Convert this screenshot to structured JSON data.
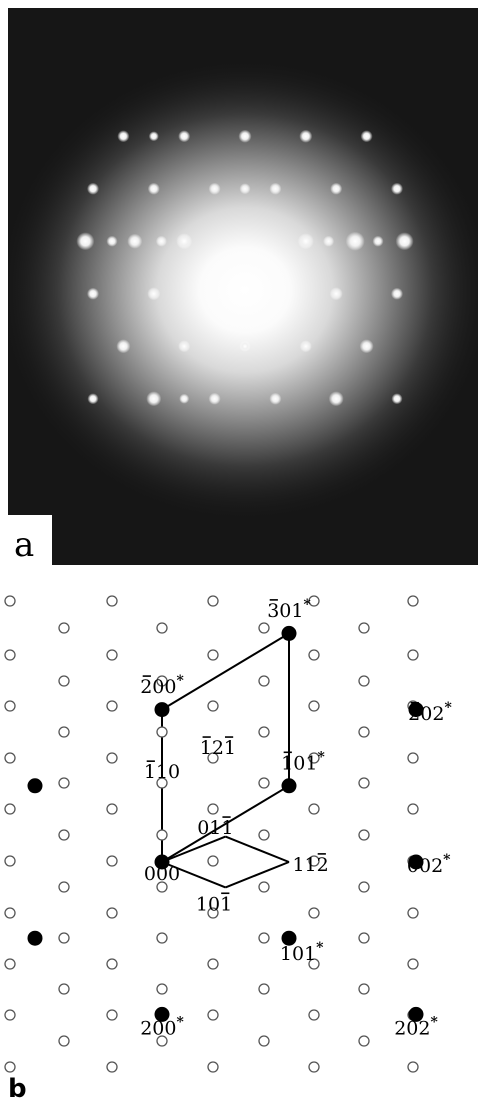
{
  "panel_a": {
    "label": "a",
    "spots": [
      [
        -1.3,
        -4.2,
        1.2
      ],
      [
        -1.3,
        -2.9,
        0.9
      ],
      [
        -1.3,
        -1.6,
        1.0
      ],
      [
        -1.3,
        1.6,
        1.0
      ],
      [
        -1.3,
        2.9,
        1.3
      ],
      [
        -1.3,
        4.2,
        1.2
      ],
      [
        -1.3,
        -3.5,
        0.5
      ],
      [
        -1.3,
        -2.2,
        0.5
      ],
      [
        -1.3,
        2.2,
        0.5
      ],
      [
        -1.3,
        3.5,
        0.5
      ],
      [
        -4.1,
        -3.2,
        0.6
      ],
      [
        -4.1,
        -1.6,
        0.6
      ],
      [
        -4.1,
        0.0,
        0.7
      ],
      [
        -4.1,
        1.6,
        0.7
      ],
      [
        -4.1,
        3.2,
        0.6
      ],
      [
        -2.7,
        -4.0,
        0.6
      ],
      [
        -2.7,
        -2.4,
        0.6
      ],
      [
        -2.7,
        -0.8,
        0.6
      ],
      [
        -2.7,
        0.8,
        0.6
      ],
      [
        -2.7,
        2.4,
        0.6
      ],
      [
        -2.7,
        4.0,
        0.6
      ],
      [
        0.1,
        -4.0,
        0.6
      ],
      [
        0.1,
        -2.4,
        0.7
      ],
      [
        0.1,
        2.4,
        0.7
      ],
      [
        0.1,
        4.0,
        0.6
      ],
      [
        1.5,
        -3.2,
        0.8
      ],
      [
        1.5,
        -1.6,
        0.6
      ],
      [
        1.5,
        1.6,
        0.6
      ],
      [
        1.5,
        3.2,
        0.8
      ],
      [
        2.9,
        -4.0,
        0.5
      ],
      [
        2.9,
        -2.4,
        0.9
      ],
      [
        2.9,
        -0.8,
        0.6
      ],
      [
        2.9,
        0.8,
        0.6
      ],
      [
        2.9,
        2.4,
        0.9
      ],
      [
        2.9,
        4.0,
        0.5
      ],
      [
        -4.1,
        -2.4,
        0.4
      ],
      [
        2.9,
        -1.6,
        0.4
      ],
      [
        1.5,
        0.0,
        0.5
      ],
      [
        -2.7,
        0.0,
        0.5
      ]
    ]
  },
  "panel_b": {
    "label": "b",
    "open_points": [
      [
        0,
        -5
      ],
      [
        0,
        -3
      ],
      [
        0,
        -1
      ],
      [
        0,
        1
      ],
      [
        0,
        3
      ],
      [
        0,
        5
      ],
      [
        0,
        7
      ],
      [
        1,
        -6
      ],
      [
        1,
        -4
      ],
      [
        1,
        -2
      ],
      [
        1,
        0
      ],
      [
        1,
        2
      ],
      [
        1,
        4
      ],
      [
        1,
        6
      ],
      [
        2,
        -7
      ],
      [
        2,
        -5
      ],
      [
        2,
        -3
      ],
      [
        2,
        -1
      ],
      [
        2,
        1
      ],
      [
        2,
        3
      ],
      [
        2,
        5
      ],
      [
        2,
        7
      ],
      [
        3,
        -6
      ],
      [
        3,
        -4
      ],
      [
        3,
        -2
      ],
      [
        3,
        0
      ],
      [
        3,
        2
      ],
      [
        3,
        4
      ],
      [
        3,
        6
      ],
      [
        4,
        -7
      ],
      [
        4,
        -5
      ],
      [
        4,
        -3
      ],
      [
        4,
        -1
      ],
      [
        4,
        1
      ],
      [
        4,
        3
      ],
      [
        4,
        5
      ],
      [
        4,
        7
      ],
      [
        5,
        -6
      ],
      [
        5,
        -4
      ],
      [
        5,
        -2
      ],
      [
        5,
        0
      ],
      [
        5,
        2
      ],
      [
        5,
        4
      ],
      [
        5,
        6
      ],
      [
        6,
        -7
      ],
      [
        6,
        -5
      ],
      [
        6,
        -3
      ],
      [
        6,
        -1
      ],
      [
        6,
        1
      ],
      [
        6,
        3
      ],
      [
        6,
        5
      ],
      [
        6,
        7
      ],
      [
        7,
        -6
      ],
      [
        7,
        -4
      ],
      [
        7,
        -2
      ],
      [
        7,
        0
      ],
      [
        7,
        2
      ],
      [
        7,
        4
      ],
      [
        7,
        6
      ],
      [
        8,
        -7
      ],
      [
        8,
        -5
      ],
      [
        8,
        -3
      ],
      [
        8,
        -1
      ],
      [
        8,
        1
      ],
      [
        8,
        3
      ],
      [
        8,
        5
      ],
      [
        8,
        7
      ],
      [
        9,
        -6
      ],
      [
        9,
        -4
      ],
      [
        9,
        -2
      ],
      [
        9,
        0
      ],
      [
        9,
        2
      ],
      [
        9,
        4
      ],
      [
        9,
        6
      ],
      [
        10,
        -7
      ],
      [
        10,
        -5
      ],
      [
        10,
        -3
      ],
      [
        10,
        -1
      ],
      [
        10,
        1
      ],
      [
        10,
        3
      ],
      [
        10,
        5
      ],
      [
        10,
        7
      ],
      [
        11,
        -6
      ],
      [
        11,
        -4
      ],
      [
        11,
        -2
      ],
      [
        11,
        0
      ],
      [
        11,
        2
      ],
      [
        11,
        4
      ],
      [
        11,
        6
      ],
      [
        12,
        -7
      ],
      [
        12,
        -5
      ],
      [
        12,
        -3
      ],
      [
        12,
        -1
      ],
      [
        12,
        1
      ],
      [
        12,
        3
      ],
      [
        12,
        5
      ],
      [
        12,
        7
      ],
      [
        13,
        -6
      ],
      [
        13,
        -4
      ],
      [
        13,
        -2
      ],
      [
        13,
        0
      ],
      [
        13,
        2
      ],
      [
        13,
        4
      ],
      [
        13,
        6
      ],
      [
        14,
        -7
      ],
      [
        14,
        -5
      ],
      [
        14,
        -3
      ],
      [
        14,
        -1
      ],
      [
        14,
        1
      ],
      [
        14,
        3
      ],
      [
        14,
        5
      ],
      [
        14,
        7
      ],
      [
        15,
        -6
      ],
      [
        15,
        -4
      ],
      [
        15,
        -2
      ],
      [
        15,
        0
      ],
      [
        15,
        2
      ],
      [
        15,
        4
      ],
      [
        15,
        6
      ],
      [
        16,
        -7
      ],
      [
        16,
        -5
      ],
      [
        16,
        -3
      ],
      [
        16,
        -1
      ],
      [
        16,
        1
      ],
      [
        16,
        3
      ],
      [
        16,
        5
      ],
      [
        16,
        7
      ],
      [
        17,
        -6
      ],
      [
        17,
        -4
      ],
      [
        17,
        -2
      ],
      [
        17,
        0
      ],
      [
        17,
        2
      ],
      [
        17,
        4
      ],
      [
        17,
        6
      ],
      [
        18,
        -7
      ],
      [
        18,
        -5
      ],
      [
        18,
        -3
      ],
      [
        18,
        -1
      ],
      [
        18,
        1
      ],
      [
        18,
        3
      ],
      [
        18,
        5
      ],
      [
        18,
        7
      ]
    ],
    "filled_points": [
      {
        "id": "000",
        "col": 0,
        "row": 9
      },
      {
        "id": "-200",
        "col": 0,
        "row": 3
      },
      {
        "id": "-301",
        "col": 5,
        "row": 0
      },
      {
        "id": "-101",
        "col": 5,
        "row": 6
      },
      {
        "id": "-202",
        "col": 10,
        "row": 3
      },
      {
        "id": "002",
        "col": 10,
        "row": 9
      },
      {
        "id": "101",
        "col": 5,
        "row": 12
      },
      {
        "id": "200",
        "col": 0,
        "row": 15
      },
      {
        "id": "202",
        "col": 10,
        "row": 15
      },
      {
        "id": "left1",
        "col": -5,
        "row": 6
      },
      {
        "id": "left2",
        "col": -5,
        "row": 12
      }
    ],
    "labels": [
      {
        "id": "l000",
        "text": "000",
        "bar": null,
        "star": false,
        "col": 0,
        "row": 9.7
      },
      {
        "id": "l200n",
        "text": "200",
        "bar": 0,
        "star": true,
        "col": 0,
        "row": 2.35
      },
      {
        "id": "l301n",
        "text": "301",
        "bar": 0,
        "star": true,
        "col": 5,
        "row": -0.65
      },
      {
        "id": "l101n",
        "text": "101",
        "bar": 0,
        "star": true,
        "col": 5.55,
        "row": 5.35
      },
      {
        "id": "l202n",
        "text": "202",
        "bar": 0,
        "star": true,
        "col": 10.55,
        "row": 3.4
      },
      {
        "id": "l002",
        "text": "002",
        "bar": null,
        "star": true,
        "col": 10.5,
        "row": 9.4
      },
      {
        "id": "l101",
        "text": "101",
        "bar": null,
        "star": true,
        "col": 5.5,
        "row": 12.85
      },
      {
        "id": "l200",
        "text": "200",
        "bar": null,
        "star": true,
        "col": 0,
        "row": 15.8
      },
      {
        "id": "l202",
        "text": "202",
        "bar": null,
        "star": true,
        "col": 10,
        "row": 15.8
      },
      {
        "id": "l110",
        "text": "110",
        "bar": 0,
        "star": false,
        "col": 0,
        "row": 5.7
      },
      {
        "id": "l121",
        "text": "121",
        "bar": [
          0,
          2
        ],
        "star": false,
        "col": 2.2,
        "row": 4.75
      },
      {
        "id": "l011",
        "text": "011",
        "bar": 2,
        "star": false,
        "col": 2.1,
        "row": 7.9
      },
      {
        "id": "l112",
        "text": "112",
        "bar": 2,
        "star": false,
        "col": 5.85,
        "row": 9.35
      },
      {
        "id": "l101b",
        "text": "101",
        "bar": 2,
        "star": false,
        "col": 2.05,
        "row": 10.9
      }
    ],
    "lines": [
      [
        0,
        3,
        5,
        0
      ],
      [
        5,
        0,
        5,
        6
      ],
      [
        0,
        3,
        0,
        9
      ],
      [
        0,
        9,
        5,
        6
      ],
      [
        0,
        9,
        2.5,
        8
      ],
      [
        2.5,
        8,
        5,
        9
      ],
      [
        5,
        9,
        2.5,
        10
      ],
      [
        2.5,
        10,
        0,
        9
      ]
    ]
  }
}
